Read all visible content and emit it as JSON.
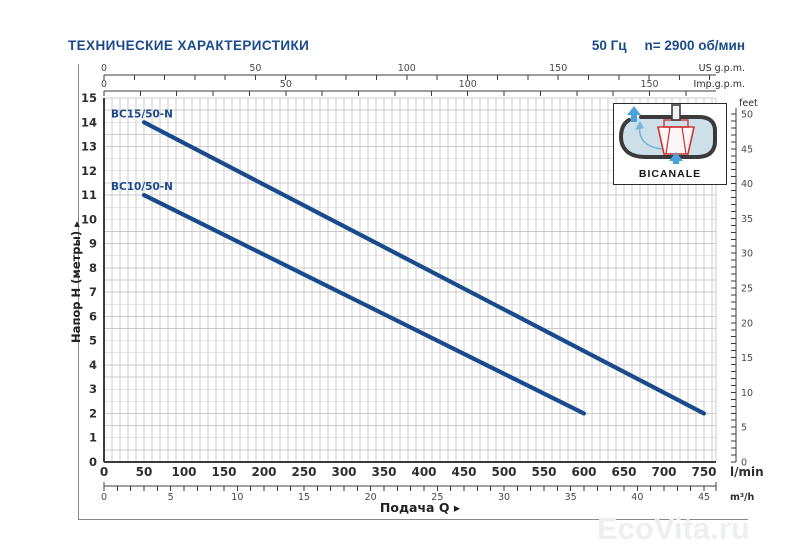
{
  "header": {
    "title": "ТЕХНИЧЕСКИЕ ХАРАКТЕРИСТИКИ",
    "frequency": "50 Гц",
    "speed": "n= 2900 об/мин"
  },
  "inset": {
    "label": "BICANALE"
  },
  "watermark": "EcoVita.ru",
  "chart_data": {
    "type": "line",
    "title": "",
    "xlabel": "Подача Q",
    "ylabel": "Напор H (метры)",
    "grid": true,
    "x_range_lmin": [
      0,
      765
    ],
    "y_range_m": [
      0,
      15
    ],
    "x_axes": [
      {
        "id": "us_gpm",
        "unit": "US g.p.m.",
        "labels": [
          0,
          50,
          100,
          150
        ],
        "lmin_per_unit": 3.785,
        "minor_step": 10
      },
      {
        "id": "imp_gpm",
        "unit": "Imp.g.p.m.",
        "labels": [
          0,
          50,
          100,
          150
        ],
        "lmin_per_unit": 4.546,
        "minor_step": 10
      },
      {
        "id": "lmin",
        "unit": "l/min",
        "labels": [
          0,
          50,
          100,
          150,
          200,
          250,
          300,
          350,
          400,
          450,
          500,
          550,
          600,
          650,
          700,
          750
        ],
        "lmin_per_unit": 1,
        "minor_step": 10
      },
      {
        "id": "m3h",
        "unit": "m³/h",
        "labels": [
          0,
          5,
          10,
          15,
          20,
          25,
          30,
          35,
          40,
          45
        ],
        "lmin_per_unit": 16.6667,
        "minor_step": 1
      }
    ],
    "y_axes": [
      {
        "id": "meters",
        "unit": "метры",
        "labels": [
          0,
          1,
          2,
          3,
          4,
          5,
          6,
          7,
          8,
          9,
          10,
          11,
          12,
          13,
          14,
          15
        ],
        "grid_step": 0.5
      },
      {
        "id": "feet",
        "unit": "feet",
        "labels": [
          0,
          5,
          10,
          15,
          20,
          25,
          30,
          35,
          40,
          45,
          50
        ],
        "minor_step": 1
      }
    ],
    "series": [
      {
        "name": "BC15/50-N",
        "color": "#1b4a8c",
        "points_lmin_m": [
          [
            50,
            14
          ],
          [
            750,
            2
          ]
        ]
      },
      {
        "name": "BC10/50-N",
        "color": "#1b4a8c",
        "points_lmin_m": [
          [
            50,
            11
          ],
          [
            600,
            2
          ]
        ]
      }
    ]
  }
}
